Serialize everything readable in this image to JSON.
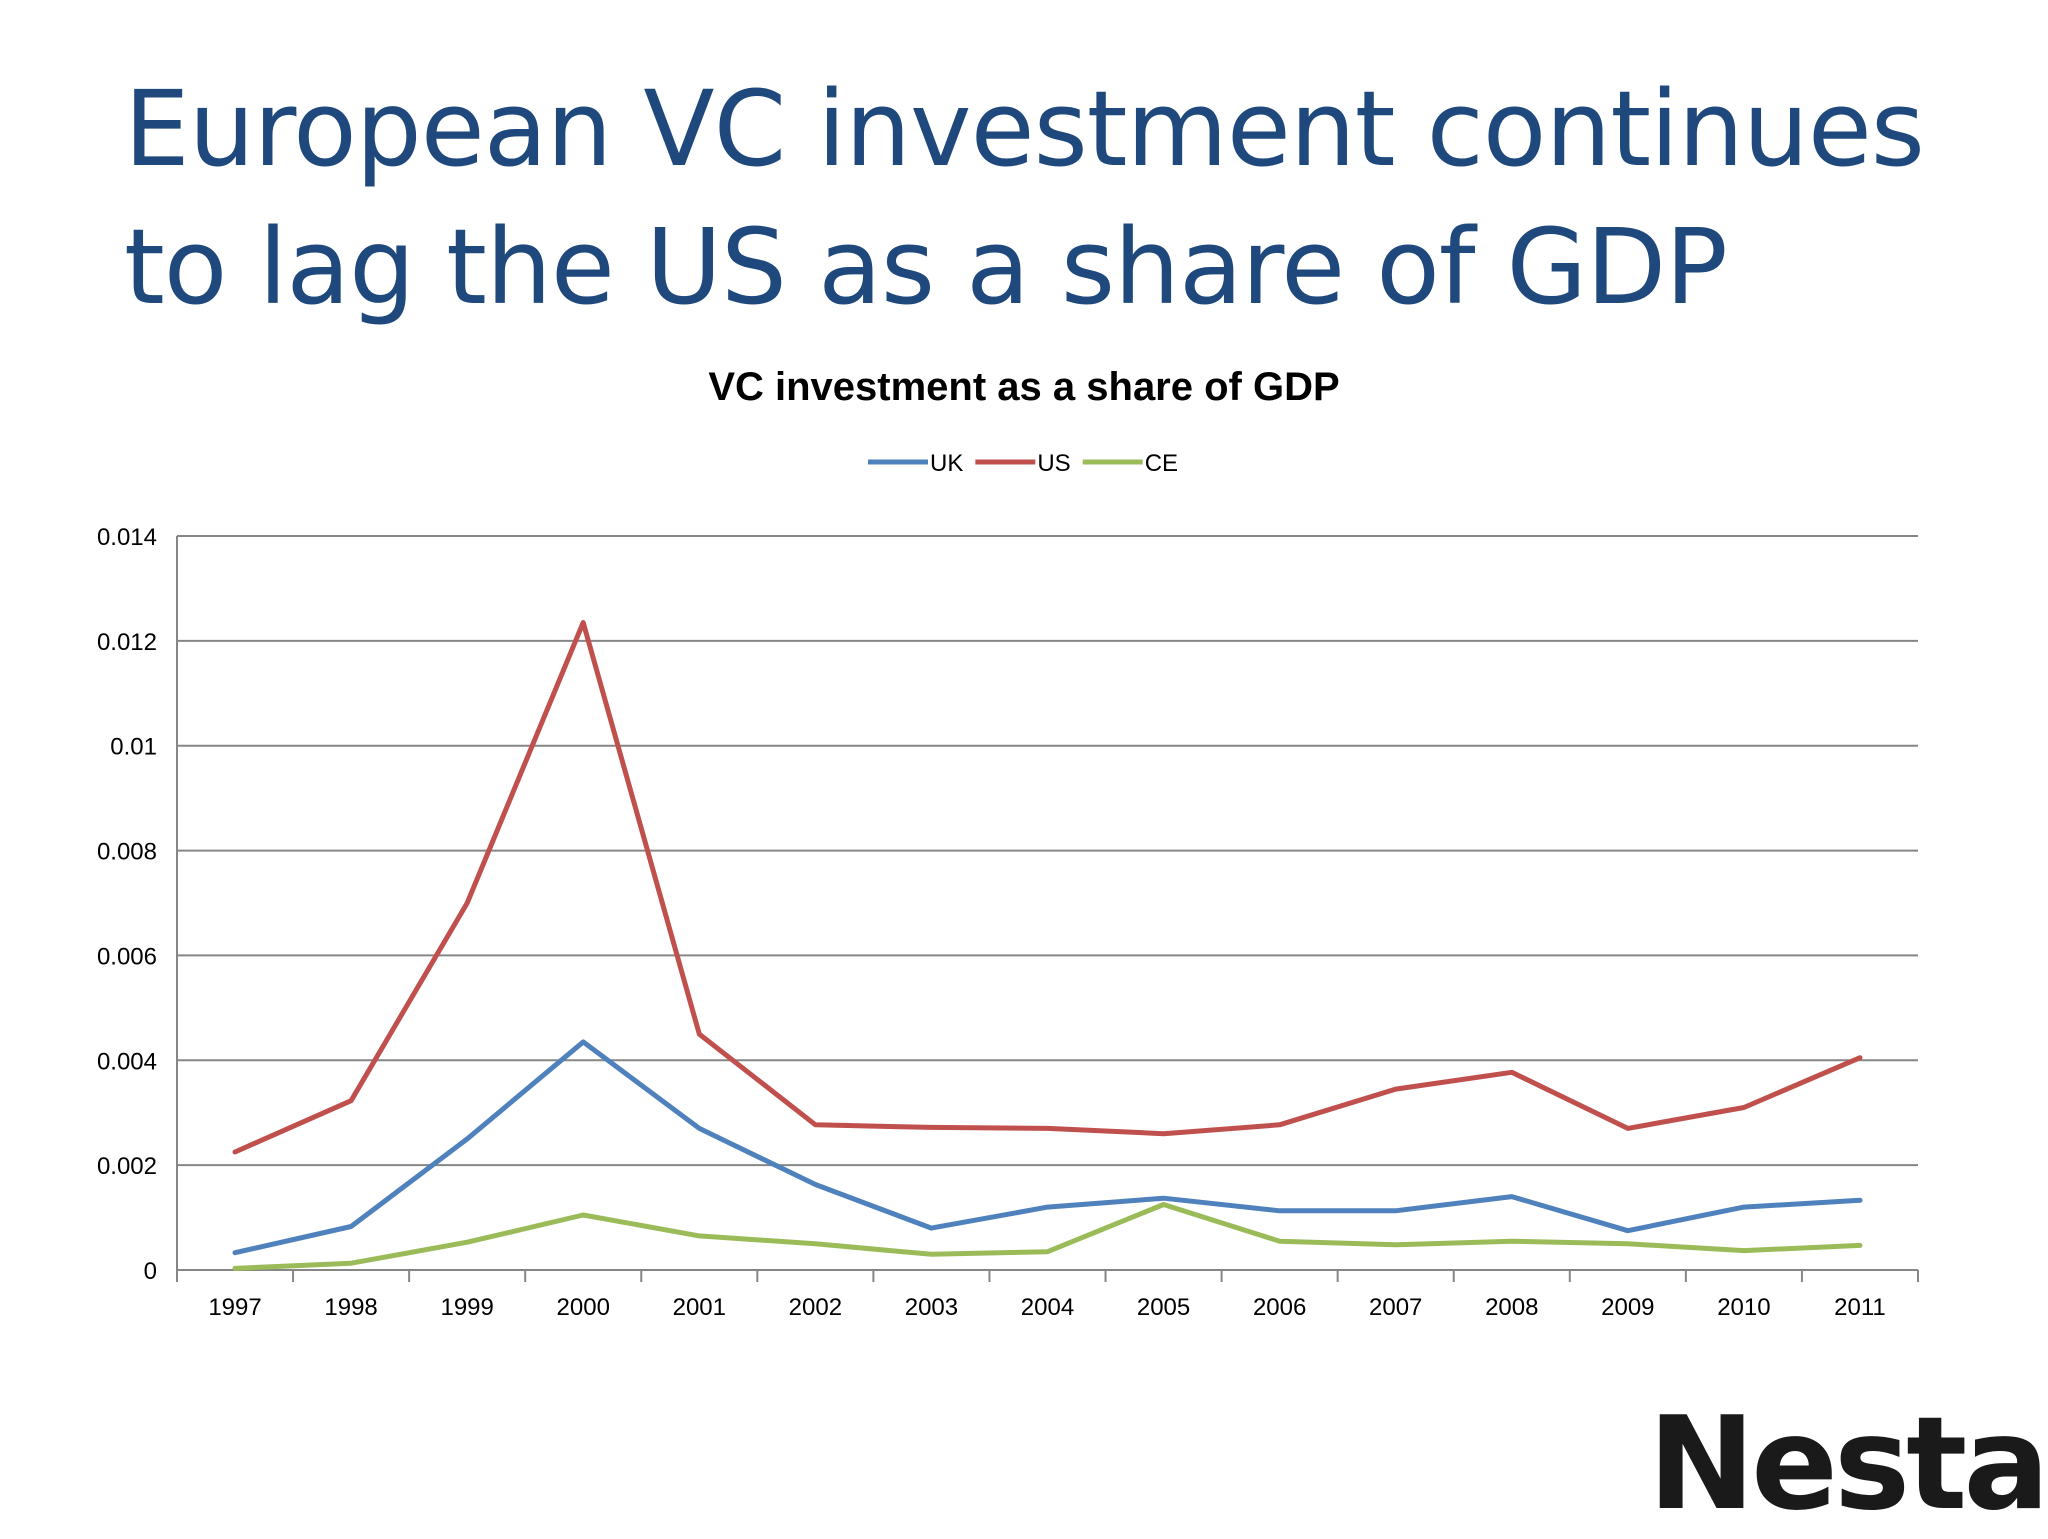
{
  "slide": {
    "title": "European VC investment continues to lag the US as a share of GDP",
    "logo_text": "Nesta",
    "logo_dot_colors": [
      "#4f8fd0",
      "#8fb9e3",
      "#cfe0f2"
    ]
  },
  "chart_data": {
    "type": "line",
    "title": "VC investment as a share of GDP",
    "x": [
      "1997",
      "1998",
      "1999",
      "2000",
      "2001",
      "2002",
      "2003",
      "2004",
      "2005",
      "2006",
      "2007",
      "2008",
      "2009",
      "2010",
      "2011"
    ],
    "series": [
      {
        "name": "UK",
        "color": "#4f81bd",
        "values": [
          0.00033,
          0.00083,
          0.0025,
          0.00435,
          0.0027,
          0.00163,
          0.0008,
          0.0012,
          0.00137,
          0.00113,
          0.00113,
          0.0014,
          0.00075,
          0.0012,
          0.00133
        ]
      },
      {
        "name": "US",
        "color": "#c0504d",
        "values": [
          0.00225,
          0.00323,
          0.007,
          0.01235,
          0.0045,
          0.00277,
          0.00272,
          0.0027,
          0.0026,
          0.00277,
          0.00345,
          0.00377,
          0.0027,
          0.0031,
          0.00405
        ]
      },
      {
        "name": "CE",
        "color": "#9bbb59",
        "values": [
          3e-05,
          0.00013,
          0.00053,
          0.00105,
          0.00065,
          0.0005,
          0.0003,
          0.00035,
          0.00125,
          0.00055,
          0.00048,
          0.00055,
          0.0005,
          0.00037,
          0.00047
        ]
      }
    ],
    "ylim": [
      0,
      0.014
    ],
    "yticks": [
      "0",
      "0.002",
      "0.004",
      "0.006",
      "0.008",
      "0.01",
      "0.012",
      "0.014"
    ],
    "grid": true,
    "legend": "top-center"
  }
}
